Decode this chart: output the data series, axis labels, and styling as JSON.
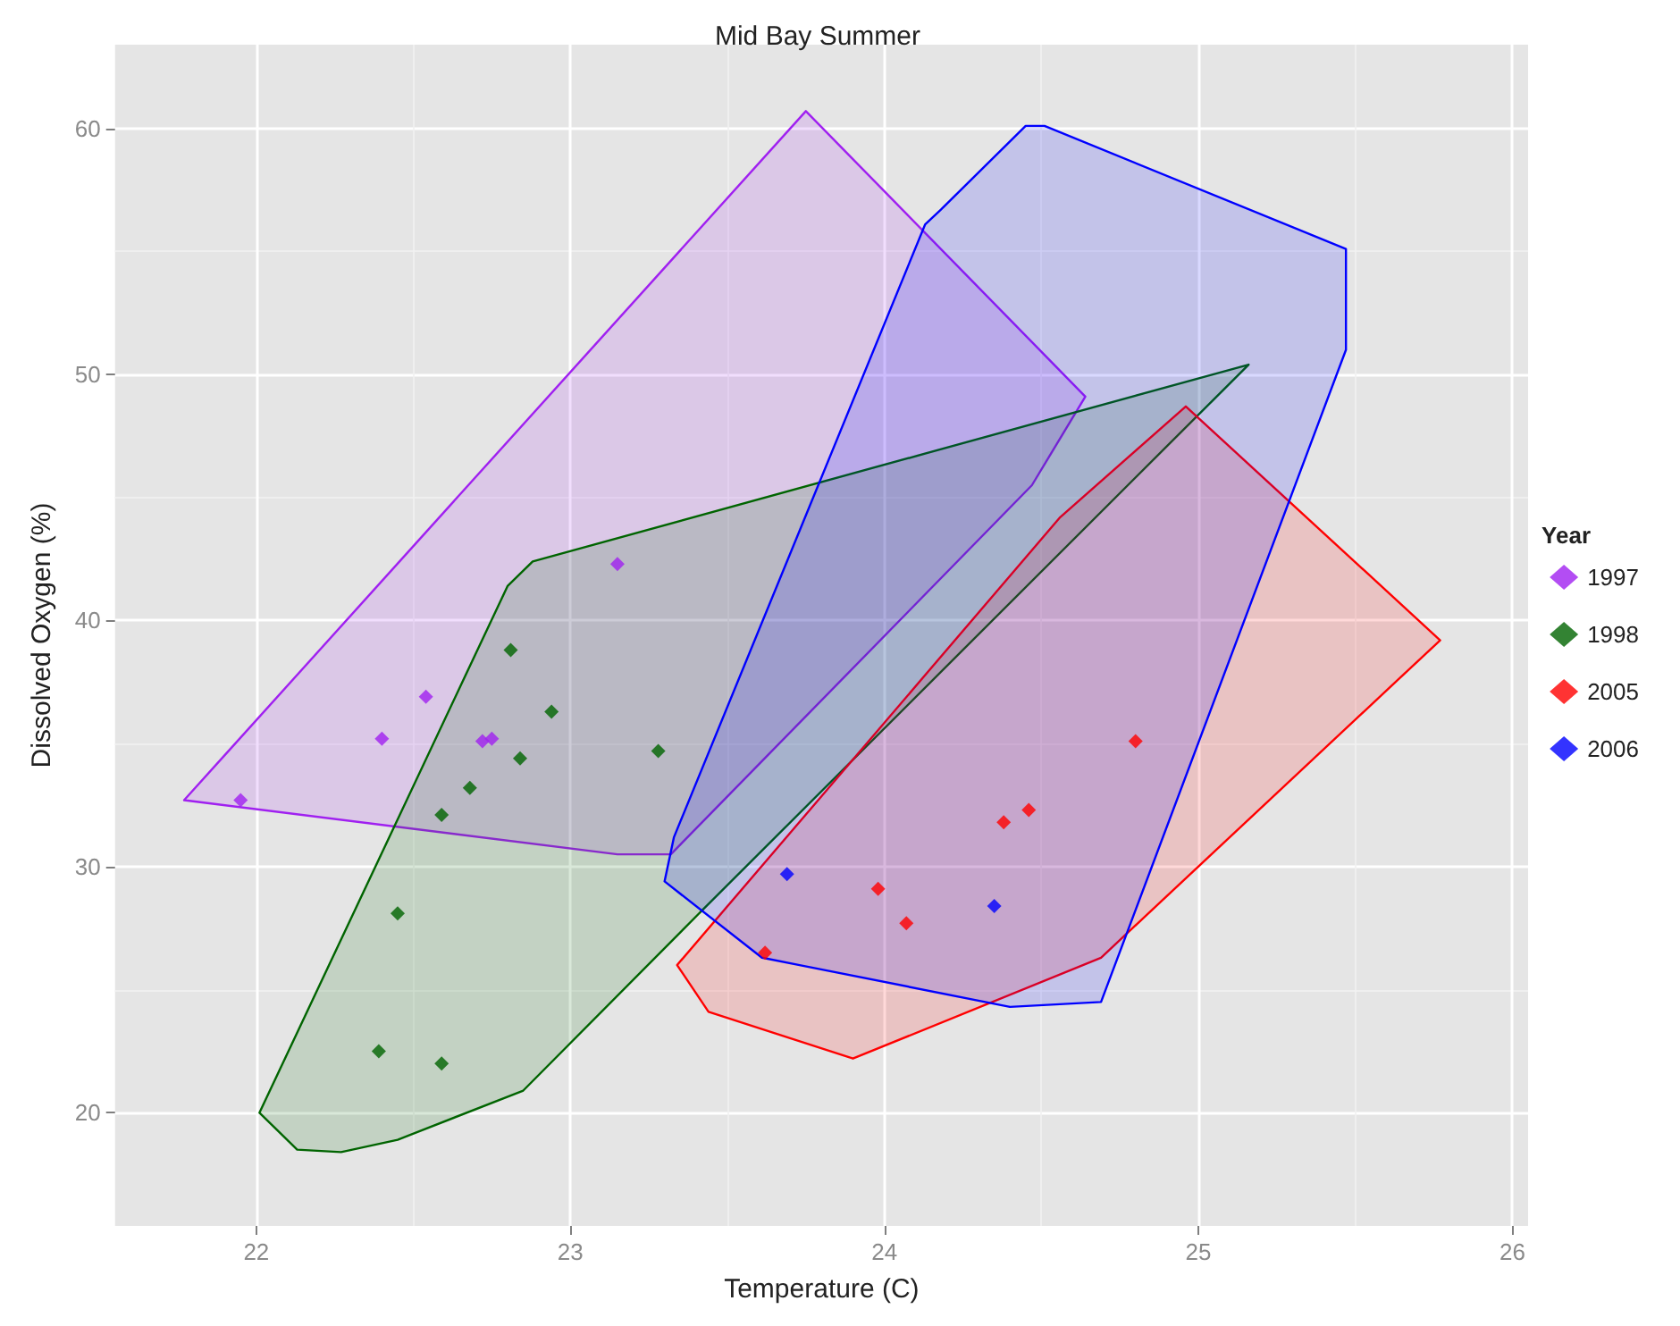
{
  "chart_data": {
    "type": "scatter",
    "title": "Mid Bay Summer",
    "xlabel": "Temperature (C)",
    "ylabel": "Dissolved Oxygen (%)",
    "legend_title": "Year",
    "legend": "right",
    "grid": true,
    "marker": "diamond",
    "xlim": [
      21.55,
      26.05
    ],
    "ylim": [
      15.4,
      63.4
    ],
    "xticks": [
      22,
      23,
      24,
      25,
      26
    ],
    "yticks": [
      20,
      30,
      40,
      50,
      60
    ],
    "series": [
      {
        "type": "area",
        "marker": "none",
        "color": "#a020f0",
        "x": [
          21.77,
          23.75,
          24.64,
          24.47,
          23.32,
          23.15
        ],
        "values": [
          32.7,
          60.7,
          49.1,
          45.5,
          30.5,
          30.5
        ]
      },
      {
        "type": "area",
        "marker": "none",
        "color": "#006400",
        "x": [
          25.16,
          22.88,
          22.8,
          22.01,
          22.13,
          22.27,
          22.45,
          22.85,
          23.41
        ],
        "values": [
          50.4,
          42.4,
          41.4,
          20.0,
          18.5,
          18.4,
          18.9,
          20.9,
          28.1
        ]
      },
      {
        "type": "area",
        "marker": "none",
        "color": "#ff0000",
        "x": [
          24.96,
          25.77,
          24.69,
          23.9,
          23.44,
          23.34,
          24.56
        ],
        "values": [
          48.7,
          39.2,
          26.3,
          22.2,
          24.1,
          26.0,
          44.2
        ]
      },
      {
        "type": "area",
        "marker": "none",
        "color": "#0000ff",
        "x": [
          24.45,
          24.51,
          25.47,
          25.47,
          24.69,
          24.4,
          23.73,
          23.61,
          23.3,
          23.33,
          24.13,
          24.18
        ],
        "values": [
          60.1,
          60.1,
          55.1,
          51.0,
          24.5,
          24.3,
          26.0,
          26.3,
          29.4,
          31.2,
          56.1,
          56.7
        ]
      },
      {
        "name": "1997",
        "color": "#a020f0",
        "x": [
          21.95,
          22.4,
          22.54,
          22.72,
          22.75,
          23.15
        ],
        "values": [
          32.7,
          35.2,
          36.9,
          35.1,
          35.2,
          42.3
        ]
      },
      {
        "name": "1998",
        "color": "#006400",
        "x": [
          22.81,
          22.94,
          22.84,
          22.68,
          22.59,
          23.28,
          22.45,
          22.39,
          22.59
        ],
        "values": [
          38.8,
          36.3,
          34.4,
          33.2,
          32.1,
          34.7,
          28.1,
          22.5,
          22.0
        ]
      },
      {
        "name": "2005",
        "color": "#ff0000",
        "x": [
          23.62,
          23.98,
          24.07,
          24.38,
          24.46,
          24.8
        ],
        "values": [
          26.5,
          29.1,
          27.7,
          31.8,
          32.3,
          35.1
        ]
      },
      {
        "name": "2006",
        "color": "#0000ff",
        "x": [
          23.69,
          24.35
        ],
        "values": [
          29.7,
          28.4
        ]
      }
    ]
  }
}
